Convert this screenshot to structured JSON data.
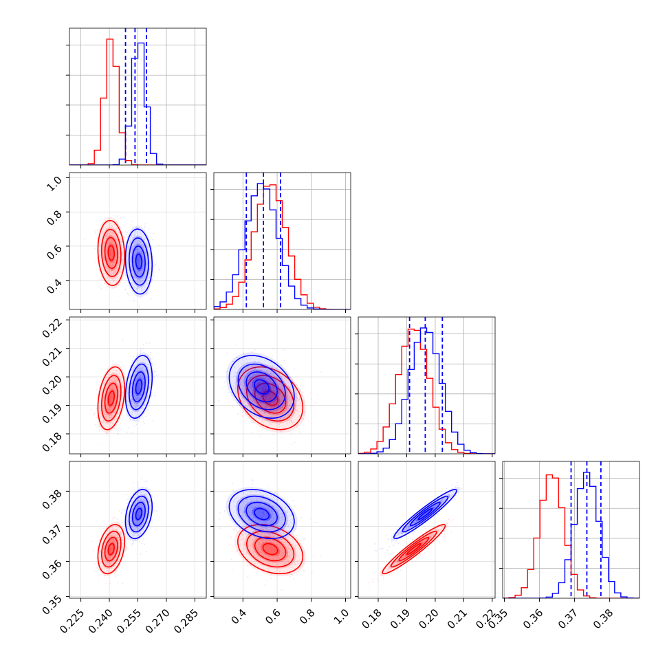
{
  "chart_data": {
    "type": "corner",
    "grid": true,
    "colors": {
      "series_a": "#ff0000",
      "series_b": "#0000ff"
    },
    "series": [
      {
        "color": "#ff0000",
        "means": [
          0.241,
          0.56,
          0.1925,
          0.3635
        ],
        "stds": [
          0.0035,
          0.095,
          0.0055,
          0.0035
        ]
      },
      {
        "color": "#0000ff",
        "means": [
          0.2555,
          0.51,
          0.1965,
          0.3735
        ],
        "stds": [
          0.0035,
          0.095,
          0.0055,
          0.0035
        ]
      }
    ],
    "correlations": {
      "x1_x0": -0.1,
      "x2_x0": 0.3,
      "x2_x1": -0.3,
      "x3_x0": 0.3,
      "x3_x1": -0.3,
      "x3_x2": 0.95
    },
    "quantile_lines": {
      "color": "#0000ff",
      "style": "dashed",
      "values": [
        [
          0.2485,
          0.2535,
          0.2595
        ],
        [
          0.42,
          0.52,
          0.62
        ],
        [
          0.191,
          0.1965,
          0.2025
        ],
        [
          0.369,
          0.3735,
          0.3775
        ]
      ]
    },
    "panels": [
      {
        "name": "x0",
        "xlim": [
          0.219,
          0.291
        ],
        "ticks": [
          0.225,
          0.24,
          0.255,
          0.27,
          0.285
        ],
        "tick_labels": [
          "0.225",
          "0.240",
          "0.255",
          "0.270",
          "0.285"
        ]
      },
      {
        "name": "x1",
        "xlim": [
          0.23,
          1.03
        ],
        "ticks": [
          0.4,
          0.6,
          0.8,
          1.0
        ],
        "tick_labels": [
          "0.4",
          "0.6",
          "0.8",
          "1.0"
        ]
      },
      {
        "name": "x2",
        "xlim": [
          0.173,
          0.221
        ],
        "ticks": [
          0.18,
          0.19,
          0.2,
          0.21,
          0.22
        ],
        "tick_labels": [
          "0.18",
          "0.19",
          "0.20",
          "0.21",
          "0.22"
        ]
      },
      {
        "name": "x3",
        "xlim": [
          0.3495,
          0.3885
        ],
        "ticks": [
          0.35,
          0.36,
          0.37,
          0.38
        ],
        "tick_labels": [
          "0.35",
          "0.36",
          "0.37",
          "0.38"
        ]
      }
    ]
  }
}
